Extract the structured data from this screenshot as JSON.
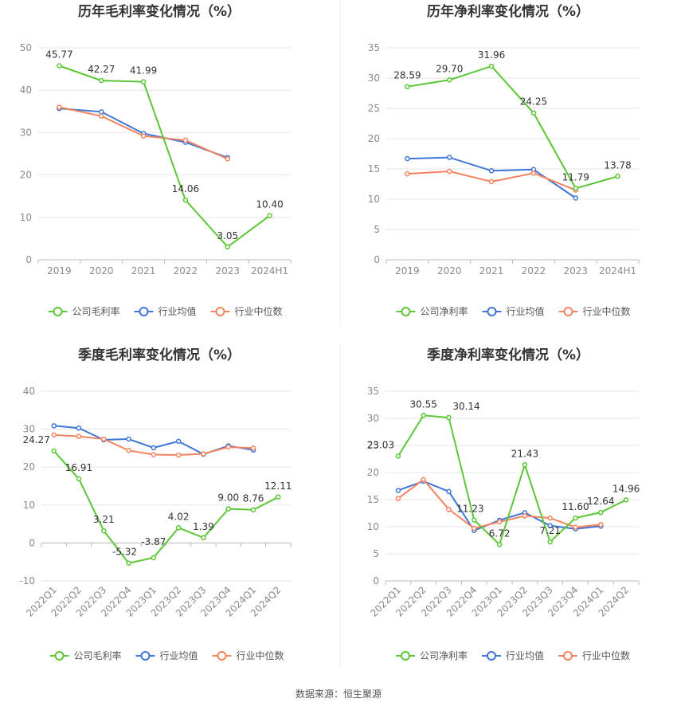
{
  "source": "数据来源：恒生聚源",
  "colors": {
    "company": "#5cc736",
    "avg": "#3f77d9",
    "median": "#f4845f",
    "grid": "#e6e6e6",
    "axis": "#bbbbbb"
  },
  "chart_data": [
    {
      "type": "line",
      "title": "历年毛利率变化情况（%）",
      "categories": [
        "2019",
        "2020",
        "2021",
        "2022",
        "2023",
        "2024H1"
      ],
      "ylim": [
        0,
        50
      ],
      "yticks": [
        0,
        10,
        20,
        30,
        40,
        50
      ],
      "legend": "bottom",
      "series": [
        {
          "name": "公司毛利率",
          "key": "company",
          "labels": true,
          "values": [
            45.77,
            42.27,
            41.99,
            14.06,
            3.05,
            10.4
          ]
        },
        {
          "name": "行业均值",
          "key": "avg",
          "values": [
            35.7,
            34.9,
            29.8,
            27.7,
            24.1,
            null
          ]
        },
        {
          "name": "行业中位数",
          "key": "median",
          "values": [
            36.0,
            33.9,
            29.2,
            28.2,
            23.8,
            null
          ]
        }
      ]
    },
    {
      "type": "line",
      "title": "历年净利率变化情况（%）",
      "categories": [
        "2019",
        "2020",
        "2021",
        "2022",
        "2023",
        "2024H1"
      ],
      "ylim": [
        0,
        35
      ],
      "yticks": [
        0,
        5,
        10,
        15,
        20,
        25,
        30,
        35
      ],
      "legend": "bottom",
      "series": [
        {
          "name": "公司净利率",
          "key": "company",
          "labels": true,
          "values": [
            28.59,
            29.7,
            31.96,
            24.25,
            11.79,
            13.78
          ]
        },
        {
          "name": "行业均值",
          "key": "avg",
          "values": [
            16.7,
            16.9,
            14.7,
            14.9,
            10.2,
            null
          ]
        },
        {
          "name": "行业中位数",
          "key": "median",
          "values": [
            14.2,
            14.6,
            12.9,
            14.3,
            11.5,
            null
          ]
        }
      ]
    },
    {
      "type": "line",
      "title": "季度毛利率变化情况（%）",
      "categories": [
        "2022Q1",
        "2022Q2",
        "2022Q3",
        "2022Q4",
        "2023Q1",
        "2023Q2",
        "2023Q3",
        "2023Q4",
        "2024Q1",
        "2024Q2"
      ],
      "ylim": [
        -10,
        40
      ],
      "yticks": [
        -10,
        0,
        10,
        20,
        30,
        40
      ],
      "legend": "bottom",
      "series": [
        {
          "name": "公司毛利率",
          "key": "company",
          "labels": true,
          "values": [
            24.27,
            16.91,
            3.21,
            -5.32,
            -3.87,
            4.02,
            1.39,
            9.0,
            8.76,
            12.11
          ]
        },
        {
          "name": "行业均值",
          "key": "avg",
          "values": [
            30.9,
            30.3,
            27.2,
            27.4,
            25.1,
            26.8,
            23.4,
            25.6,
            24.5,
            null
          ]
        },
        {
          "name": "行业中位数",
          "key": "median",
          "values": [
            28.5,
            28.1,
            27.4,
            24.4,
            23.3,
            23.2,
            23.5,
            25.3,
            25.0,
            null
          ]
        }
      ]
    },
    {
      "type": "line",
      "title": "季度净利率变化情况（%）",
      "categories": [
        "2022Q1",
        "2022Q2",
        "2022Q3",
        "2022Q4",
        "2023Q1",
        "2023Q2",
        "2023Q3",
        "2023Q4",
        "2024Q1",
        "2024Q2"
      ],
      "ylim": [
        0,
        35
      ],
      "yticks": [
        0,
        5,
        10,
        15,
        20,
        25,
        30,
        35
      ],
      "legend": "bottom",
      "series": [
        {
          "name": "公司净利率",
          "key": "company",
          "labels": true,
          "values": [
            23.03,
            30.55,
            30.14,
            11.23,
            6.72,
            21.43,
            7.21,
            11.6,
            12.64,
            14.96
          ]
        },
        {
          "name": "行业均值",
          "key": "avg",
          "values": [
            16.7,
            18.4,
            16.5,
            9.3,
            11.2,
            12.6,
            10.2,
            9.6,
            10.1,
            null
          ]
        },
        {
          "name": "行业中位数",
          "key": "median",
          "values": [
            15.2,
            18.7,
            13.2,
            9.7,
            10.9,
            12.0,
            11.6,
            9.9,
            10.4,
            null
          ]
        }
      ]
    }
  ]
}
